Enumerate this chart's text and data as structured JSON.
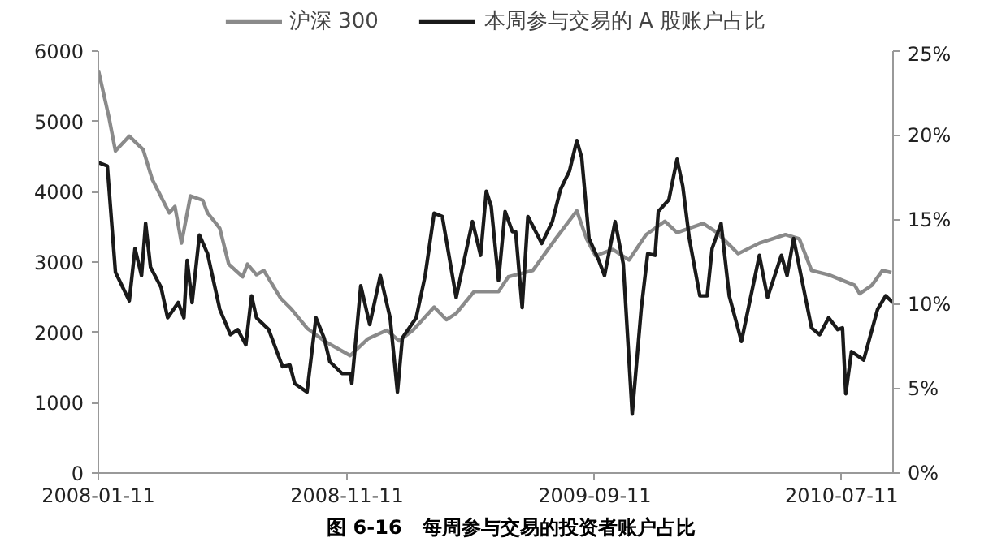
{
  "chart_data": {
    "type": "line",
    "annotations": [
      "图 6-16   每周参与交易的投资者账户占比"
    ],
    "xlim": [
      "2008-01-11",
      "2010-09-12"
    ],
    "xticks": [
      {
        "value": "2008-01-11",
        "label": "2008-01-11"
      },
      {
        "value": "2008-11-11",
        "label": "2008-11-11"
      },
      {
        "value": "2009-09-11",
        "label": "2009-09-11"
      },
      {
        "value": "2010-07-11",
        "label": "2010-07-11"
      }
    ],
    "ylim": [
      0,
      6000
    ],
    "yticks": [
      0,
      1000,
      2000,
      3000,
      4000,
      5000,
      6000
    ],
    "y2lim": [
      0,
      25
    ],
    "y2ticks": [
      {
        "value": 0,
        "label": "0%"
      },
      {
        "value": 5,
        "label": "5%"
      },
      {
        "value": 10,
        "label": "10%"
      },
      {
        "value": 15,
        "label": "15%"
      },
      {
        "value": 20,
        "label": "20%"
      },
      {
        "value": 25,
        "label": "25%"
      }
    ],
    "grid": false,
    "legend": "top",
    "series": [
      {
        "name": "沪深 300",
        "color": "#8a8a8a",
        "x": [
          "2008-01-11",
          "2008-01-24",
          "2008-02-01",
          "2008-02-18",
          "2008-03-06",
          "2008-03-17",
          "2008-04-07",
          "2008-04-14",
          "2008-04-22",
          "2008-05-03",
          "2008-05-18",
          "2008-05-24",
          "2008-06-08",
          "2008-06-19",
          "2008-07-06",
          "2008-07-12",
          "2008-07-23",
          "2008-08-01",
          "2008-08-22",
          "2008-09-04",
          "2008-09-23",
          "2008-10-14",
          "2008-11-15",
          "2008-12-07",
          "2008-12-30",
          "2009-01-14",
          "2009-01-31",
          "2009-02-26",
          "2009-03-13",
          "2009-03-25",
          "2009-04-16",
          "2009-05-16",
          "2009-05-28",
          "2009-06-27",
          "2009-07-25",
          "2009-08-20",
          "2009-09-01",
          "2009-09-12",
          "2009-10-03",
          "2009-10-23",
          "2009-11-13",
          "2009-12-06",
          "2009-12-21",
          "2010-01-05",
          "2010-01-22",
          "2010-02-08",
          "2010-03-06",
          "2010-04-01",
          "2010-05-03",
          "2010-05-20",
          "2010-06-04",
          "2010-06-25",
          "2010-07-27",
          "2010-08-02",
          "2010-08-17",
          "2010-08-30",
          "2010-09-10"
        ],
        "values": [
          5730,
          5060,
          4580,
          4790,
          4600,
          4180,
          3700,
          3790,
          3270,
          3940,
          3880,
          3700,
          3480,
          2970,
          2790,
          2970,
          2820,
          2880,
          2480,
          2330,
          2060,
          1880,
          1670,
          1910,
          2030,
          1880,
          2030,
          2360,
          2180,
          2270,
          2580,
          2580,
          2790,
          2880,
          3330,
          3730,
          3330,
          3090,
          3180,
          3030,
          3390,
          3580,
          3420,
          3480,
          3550,
          3420,
          3120,
          3270,
          3390,
          3330,
          2880,
          2820,
          2670,
          2550,
          2670,
          2880,
          2850
        ]
      },
      {
        "name": "本周参与交易的 A 股账户占比",
        "color": "#1a1a1a",
        "axis": "y2",
        "x": [
          "2008-01-11",
          "2008-01-22",
          "2008-02-01",
          "2008-02-18",
          "2008-02-25",
          "2008-03-04",
          "2008-03-09",
          "2008-03-15",
          "2008-03-28",
          "2008-04-05",
          "2008-04-18",
          "2008-04-25",
          "2008-04-29",
          "2008-05-05",
          "2008-05-14",
          "2008-05-24",
          "2008-06-08",
          "2008-06-21",
          "2008-06-30",
          "2008-07-10",
          "2008-07-17",
          "2008-07-23",
          "2008-08-07",
          "2008-08-24",
          "2008-09-02",
          "2008-09-08",
          "2008-09-23",
          "2008-10-04",
          "2008-10-14",
          "2008-10-21",
          "2008-11-05",
          "2008-11-15",
          "2008-11-17",
          "2008-11-28",
          "2008-12-09",
          "2008-12-22",
          "2009-01-03",
          "2009-01-12",
          "2009-01-18",
          "2009-02-04",
          "2009-02-15",
          "2009-02-26",
          "2009-03-08",
          "2009-03-25",
          "2009-04-14",
          "2009-04-24",
          "2009-05-01",
          "2009-05-07",
          "2009-05-16",
          "2009-05-24",
          "2009-06-02",
          "2009-06-06",
          "2009-06-14",
          "2009-06-21",
          "2009-07-08",
          "2009-07-21",
          "2009-07-31",
          "2009-08-11",
          "2009-08-20",
          "2009-08-26",
          "2009-09-04",
          "2009-09-16",
          "2009-09-23",
          "2009-10-06",
          "2009-10-16",
          "2009-10-27",
          "2009-11-07",
          "2009-11-15",
          "2009-11-24",
          "2009-11-28",
          "2009-12-11",
          "2009-12-21",
          "2009-12-28",
          "2010-01-05",
          "2010-01-18",
          "2010-01-27",
          "2010-02-02",
          "2010-02-13",
          "2010-02-23",
          "2010-03-10",
          "2010-04-01",
          "2010-04-11",
          "2010-04-28",
          "2010-05-05",
          "2010-05-13",
          "2010-06-04",
          "2010-06-14",
          "2010-06-25",
          "2010-07-06",
          "2010-07-12",
          "2010-07-16",
          "2010-07-23",
          "2010-08-07",
          "2010-08-24",
          "2010-09-03",
          "2010-09-12"
        ],
        "values": [
          18.4,
          18.2,
          11.9,
          10.2,
          13.3,
          11.7,
          14.8,
          12.2,
          11.0,
          9.2,
          10.1,
          9.2,
          12.6,
          10.1,
          14.1,
          13.0,
          9.7,
          8.2,
          8.5,
          7.6,
          10.5,
          9.2,
          8.5,
          6.3,
          6.4,
          5.3,
          4.8,
          9.2,
          8.0,
          6.6,
          5.9,
          5.9,
          5.3,
          11.1,
          8.8,
          11.7,
          9.2,
          4.8,
          8.0,
          9.2,
          11.7,
          15.4,
          15.2,
          10.4,
          14.9,
          12.9,
          16.7,
          15.8,
          11.4,
          15.5,
          14.3,
          14.3,
          9.8,
          15.2,
          13.6,
          14.9,
          16.8,
          17.9,
          19.7,
          18.7,
          13.9,
          12.6,
          11.7,
          14.9,
          12.4,
          3.5,
          9.7,
          13.0,
          12.9,
          15.5,
          16.2,
          18.6,
          17.0,
          13.9,
          10.5,
          10.5,
          13.3,
          14.8,
          10.5,
          7.8,
          12.9,
          10.4,
          12.9,
          11.7,
          13.9,
          8.6,
          8.2,
          9.2,
          8.5,
          8.6,
          4.7,
          7.2,
          6.7,
          9.7,
          10.5,
          10.1
        ]
      }
    ]
  }
}
